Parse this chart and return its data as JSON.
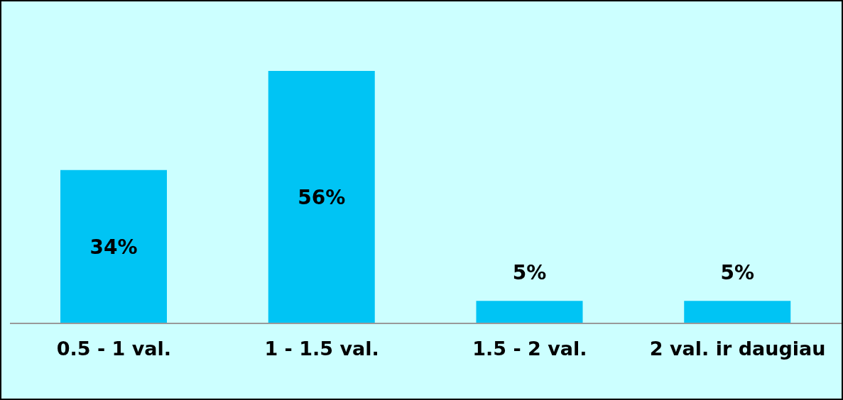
{
  "chart_data": {
    "type": "bar",
    "categories": [
      "0.5 - 1 val.",
      "1 - 1.5 val.",
      "1.5 - 2 val.",
      "2 val. ir daugiau"
    ],
    "values": [
      34,
      56,
      5,
      5
    ],
    "color": "#00c4f4",
    "value_labels": [
      "34%",
      "56%",
      "5%",
      "5%"
    ],
    "grid": false,
    "legend": false
  }
}
